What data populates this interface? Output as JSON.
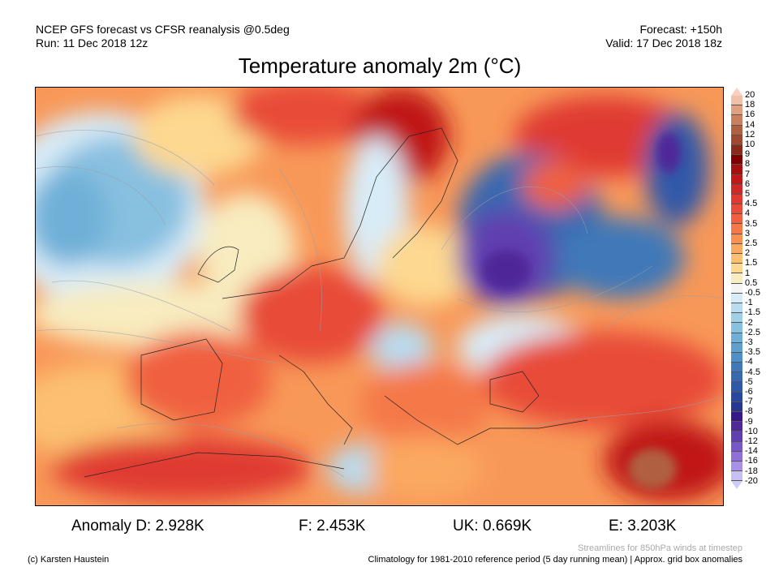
{
  "header": {
    "model_line": "NCEP GFS forecast vs CFSR reanalysis @0.5deg",
    "run_line": "Run: 11 Dec 2018 12z",
    "forecast_line": "Forecast: +150h",
    "valid_line": "Valid: 17 Dec 2018 18z",
    "title": "Temperature anomaly 2m (°C)"
  },
  "colorbar": {
    "labels": [
      "20",
      "18",
      "16",
      "14",
      "12",
      "10",
      "9",
      "8",
      "7",
      "6",
      "5",
      "4.5",
      "4",
      "3.5",
      "3",
      "2.5",
      "2",
      "1.5",
      "1",
      "0.5",
      "-0.5",
      "-1",
      "-1.5",
      "-2",
      "-2.5",
      "-3",
      "-3.5",
      "-4",
      "-4.5",
      "-5",
      "-6",
      "-7",
      "-8",
      "-9",
      "-10",
      "-12",
      "-14",
      "-16",
      "-18",
      "-20"
    ],
    "colors": [
      "#f0c0a8",
      "#e0a080",
      "#c8805f",
      "#b06040",
      "#a04830",
      "#8a2a1a",
      "#800000",
      "#a81010",
      "#c01818",
      "#d02828",
      "#e03a30",
      "#e84c38",
      "#f06040",
      "#f57848",
      "#f89050",
      "#fba860",
      "#fcc070",
      "#fdd890",
      "#f8ecc0",
      "#f4f4f4",
      "#d8ecf8",
      "#b8dcf0",
      "#a0d0e8",
      "#88c0e0",
      "#70b0d8",
      "#60a0d0",
      "#5090c8",
      "#4078b8",
      "#3868b0",
      "#3058a8",
      "#2848a0",
      "#283890",
      "#381888",
      "#502898",
      "#6040b0",
      "#7858c8",
      "#9070d8",
      "#a890e8",
      "#c8c0f0"
    ],
    "top_arrow_color": "#f8d0c0",
    "bottom_arrow_color": "#d0ccf8"
  },
  "stats": {
    "d": "Anomaly D: 2.928K",
    "f": "F: 2.453K",
    "uk": "UK: 0.669K",
    "e": "E: 3.203K"
  },
  "footer": {
    "copyright": "(c) Karsten Haustein",
    "streamlines": "Streamlines for 850hPa winds at timestep",
    "climatology": "Climatology for 1981-2010 reference period (5 day running mean) | Approx. grid box anomalies"
  }
}
